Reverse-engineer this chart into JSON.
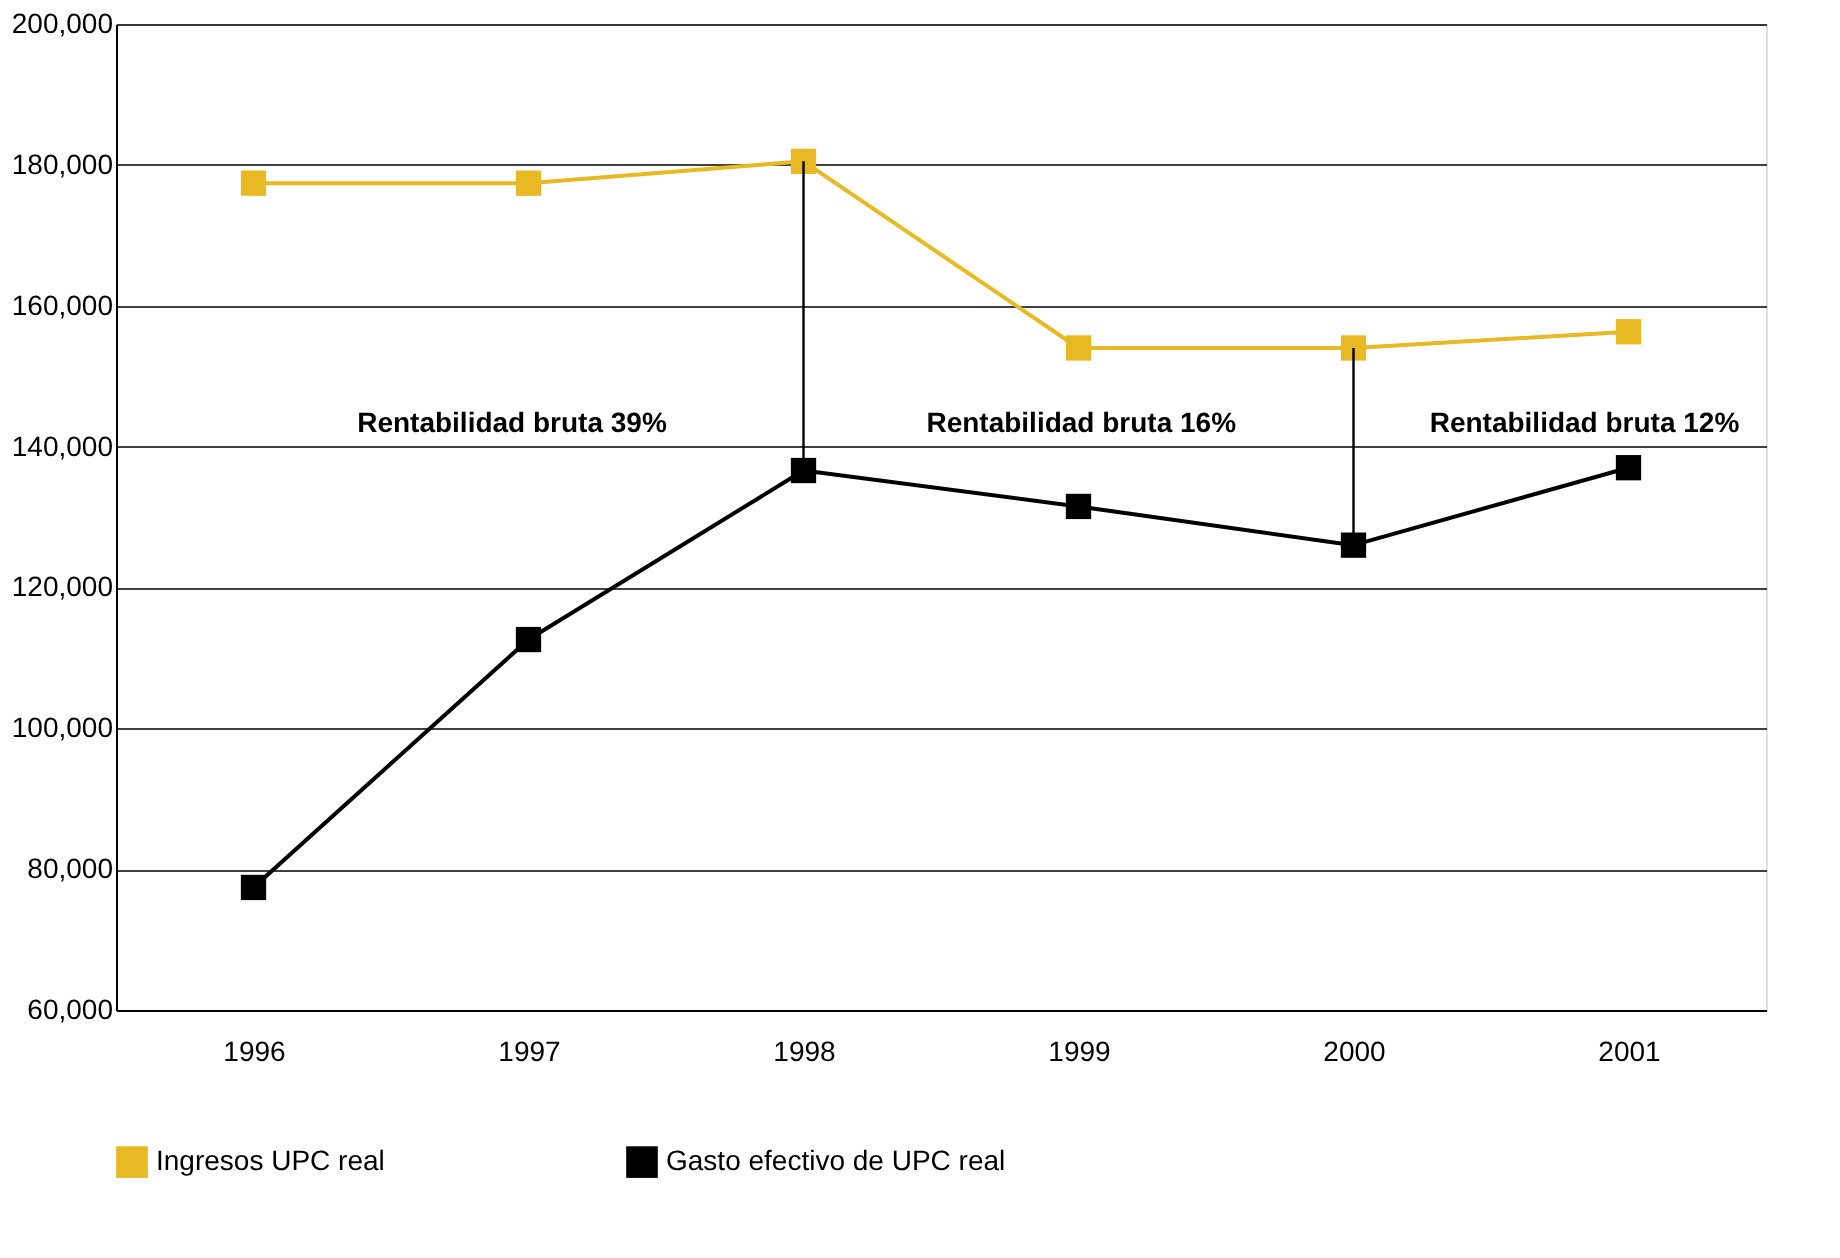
{
  "chart_data": {
    "type": "line",
    "categories": [
      "1996",
      "1997",
      "1998",
      "1999",
      "2000",
      "2001"
    ],
    "series": [
      {
        "name": "Ingresos UPC real",
        "color": "#e8b923",
        "values": [
          177400,
          177400,
          180500,
          154000,
          154000,
          156300
        ]
      },
      {
        "name": "Gasto efectivo de UPC real",
        "color": "#000000",
        "values": [
          77400,
          112600,
          136600,
          131500,
          126000,
          137000
        ],
        "errors": [
          null,
          null,
          [
            136600,
            180500
          ],
          null,
          [
            126000,
            154000
          ],
          null
        ]
      }
    ],
    "ylim": [
      60000,
      200000
    ],
    "yticks": [
      {
        "value": 60000,
        "label": "60,000"
      },
      {
        "value": 80000,
        "label": "80,000"
      },
      {
        "value": 100000,
        "label": "100,000"
      },
      {
        "value": 120000,
        "label": "120,000"
      },
      {
        "value": 140000,
        "label": "140,000"
      },
      {
        "value": 160000,
        "label": "160,000"
      },
      {
        "value": 180000,
        "label": "180,000"
      },
      {
        "value": 200000,
        "label": "200,000"
      }
    ],
    "grid": "y",
    "legend": "bottom",
    "marker": "square",
    "line_style": "solid",
    "annotations": [
      "Rentabilidad bruta 39%",
      "Rentabilidad bruta 16%",
      "Rentabilidad bruta 12%"
    ]
  }
}
